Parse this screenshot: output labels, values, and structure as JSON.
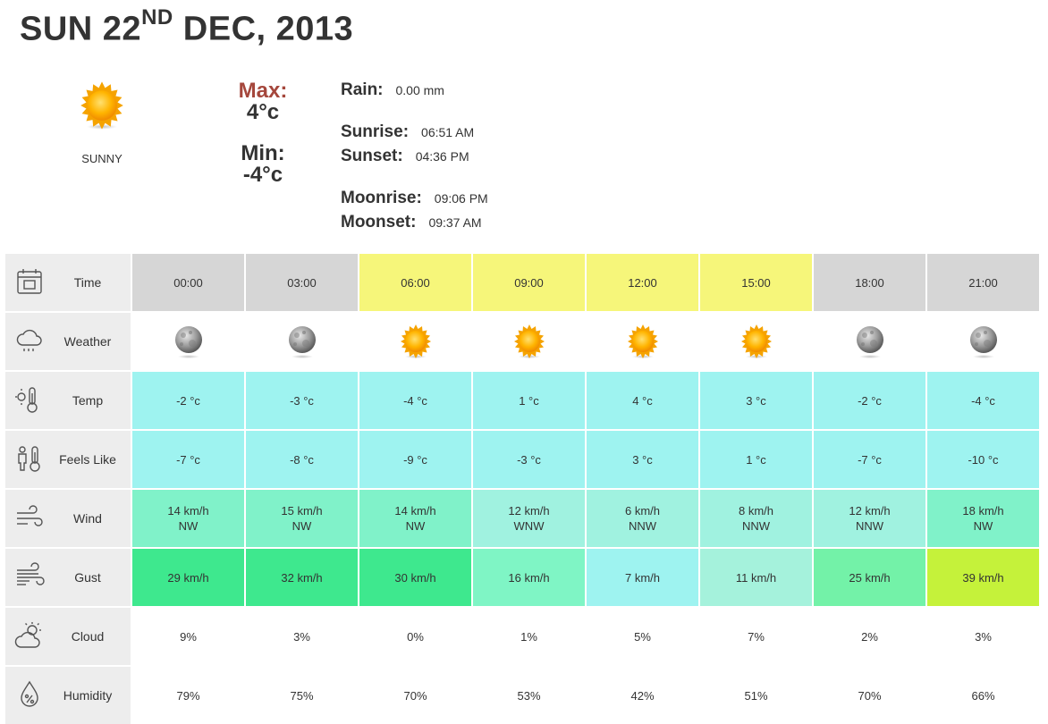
{
  "header": {
    "day": "SUN 22",
    "suffix": "ND",
    "rest": " DEC, 2013"
  },
  "summary": {
    "condition": "SUNNY",
    "condition_icon": "sun-icon",
    "max_label": "Max:",
    "max_value": "4°c",
    "min_label": "Min:",
    "min_value": "-4°c",
    "rain_label": "Rain:",
    "rain_value": "0.00 mm",
    "sunrise_label": "Sunrise:",
    "sunrise_value": "06:51 AM",
    "sunset_label": "Sunset:",
    "sunset_value": "04:36 PM",
    "moonrise_label": "Moonrise:",
    "moonrise_value": "09:06 PM",
    "moonset_label": "Moonset:",
    "moonset_value": "09:37 AM"
  },
  "colors": {
    "time_night": "#d6d6d6",
    "time_day": "#f6f67a",
    "temp": "#9ef3f0",
    "wind_a": "#80f2c9",
    "wind_b": "#a0f2e0",
    "gust_a": "#3ee88e",
    "gust_b": "#7ff5c5",
    "gust_c": "#9ef3f0",
    "gust_d": "#a5f2dc",
    "gust_e": "#73f2a8",
    "gust_f": "#c5f23a",
    "label_bg": "#ededed"
  },
  "rows": {
    "time": {
      "label": "Time",
      "icon": "calendar-icon",
      "values": [
        "00:00",
        "03:00",
        "06:00",
        "09:00",
        "12:00",
        "15:00",
        "18:00",
        "21:00"
      ]
    },
    "weather": {
      "label": "Weather",
      "icon": "cloud-rain-icon",
      "values": [
        "moon",
        "moon",
        "sun",
        "sun",
        "sun",
        "sun",
        "moon",
        "moon"
      ]
    },
    "temp": {
      "label": "Temp",
      "icon": "thermometer-sun-icon",
      "values": [
        "-2 °c",
        "-3 °c",
        "-4 °c",
        "1 °c",
        "4 °c",
        "3 °c",
        "-2 °c",
        "-4 °c"
      ]
    },
    "feels": {
      "label": "Feels Like",
      "icon": "person-thermometer-icon",
      "values": [
        "-7 °c",
        "-8 °c",
        "-9 °c",
        "-3 °c",
        "3 °c",
        "1 °c",
        "-7 °c",
        "-10 °c"
      ]
    },
    "wind": {
      "label": "Wind",
      "icon": "wind-icon",
      "speed": [
        "14 km/h",
        "15 km/h",
        "14 km/h",
        "12 km/h",
        "6 km/h",
        "8 km/h",
        "12 km/h",
        "18 km/h"
      ],
      "dir": [
        "NW",
        "NW",
        "NW",
        "WNW",
        "NNW",
        "NNW",
        "NNW",
        "NW"
      ]
    },
    "gust": {
      "label": "Gust",
      "icon": "gust-icon",
      "values": [
        "29 km/h",
        "32 km/h",
        "30 km/h",
        "16 km/h",
        "7 km/h",
        "11 km/h",
        "25 km/h",
        "39 km/h"
      ]
    },
    "cloud": {
      "label": "Cloud",
      "icon": "sun-cloud-icon",
      "values": [
        "9%",
        "3%",
        "0%",
        "1%",
        "5%",
        "7%",
        "2%",
        "3%"
      ]
    },
    "humidity": {
      "label": "Humidity",
      "icon": "humidity-drop-icon",
      "values": [
        "79%",
        "75%",
        "70%",
        "53%",
        "42%",
        "51%",
        "70%",
        "66%"
      ]
    }
  }
}
